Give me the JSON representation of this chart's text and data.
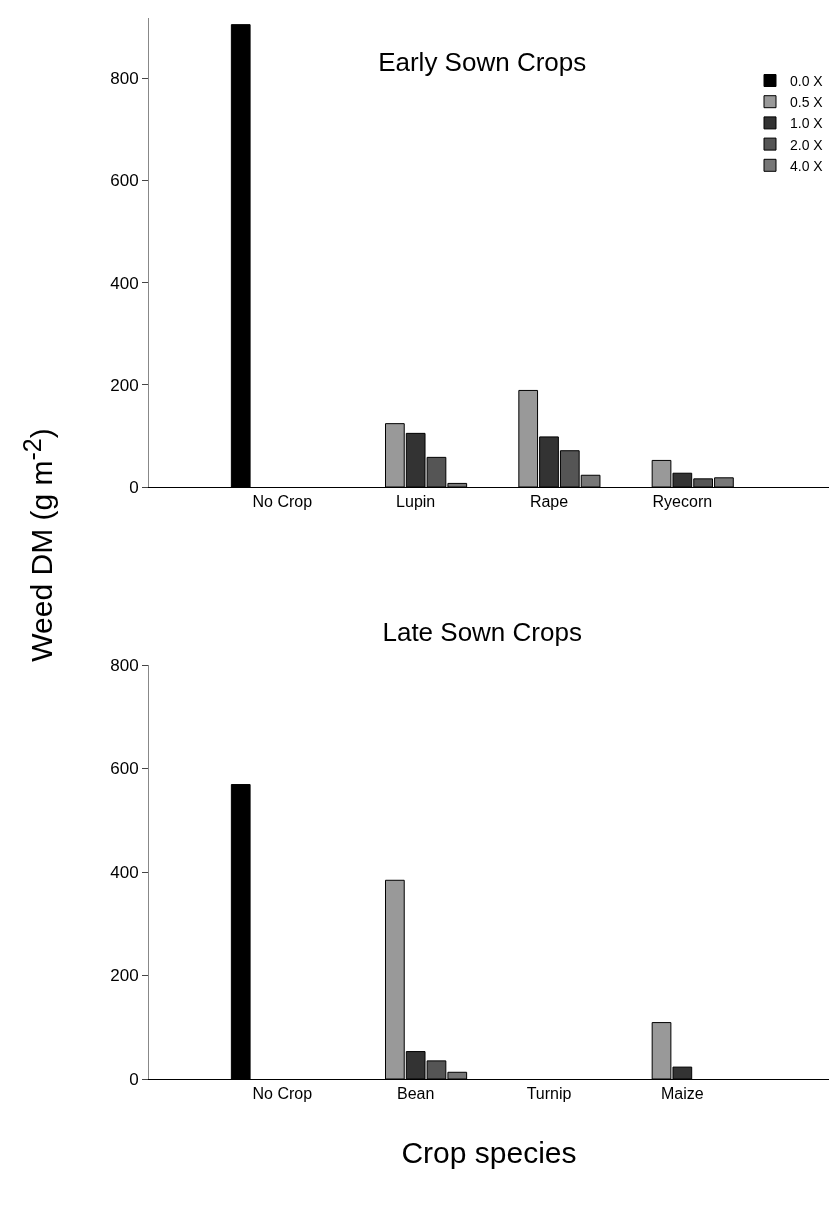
{
  "chart_data": [
    {
      "type": "bar",
      "title": "Early Sown Crops",
      "ylabel": "Weed DM (g m$^{-2}$)",
      "categories": [
        "No Crop",
        "Lupin",
        "Rape",
        "Ryecorn"
      ],
      "series": [
        {
          "name": "0.0 X",
          "color": "#000000",
          "values": [
            905,
            null,
            null,
            null
          ]
        },
        {
          "name": "0.5 X",
          "color": "#999999",
          "values": [
            null,
            124,
            189,
            52
          ]
        },
        {
          "name": "1.0 X",
          "color": "#333333",
          "values": [
            null,
            105,
            98,
            27
          ]
        },
        {
          "name": "2.0 X",
          "color": "#555555",
          "values": [
            null,
            58,
            71,
            16
          ]
        },
        {
          "name": "4.0 X",
          "color": "#777777",
          "values": [
            null,
            7,
            23,
            18
          ]
        }
      ],
      "ylim": [
        0,
        918
      ],
      "yticks": [
        0,
        200,
        400,
        600,
        800
      ],
      "grid": false,
      "legend": "top right"
    },
    {
      "type": "bar",
      "title": "Late Sown Crops",
      "xlabel": "Crop species",
      "categories": [
        "No Crop",
        "Bean",
        "Turnip",
        "Maize"
      ],
      "series": [
        {
          "color": "#000000",
          "values": [
            569,
            null,
            null,
            null
          ]
        },
        {
          "color": "#999999",
          "values": [
            null,
            384,
            null,
            109
          ]
        },
        {
          "color": "#333333",
          "values": [
            null,
            53,
            null,
            23
          ]
        },
        {
          "color": "#555555",
          "values": [
            null,
            35,
            null,
            null
          ]
        },
        {
          "color": "#777777",
          "values": [
            null,
            13,
            null,
            null
          ]
        }
      ],
      "ylim": [
        0,
        800
      ],
      "yticks": [
        0,
        200,
        400,
        600,
        800
      ],
      "grid": false
    }
  ]
}
